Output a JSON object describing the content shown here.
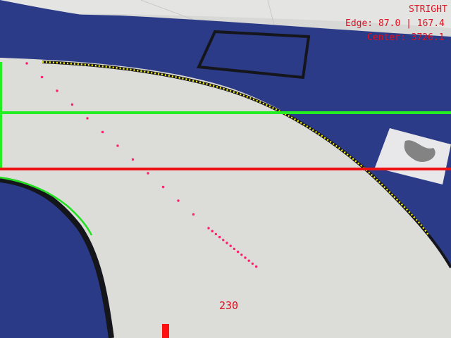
{
  "hud": {
    "state": "STRIGHT",
    "edge": "Edge: 87.0 | 167.4",
    "center": "Center: 3726.1",
    "steering": "230"
  },
  "colors": {
    "track_surface": "#dcdcd9",
    "mat_blue": "#2a3a86",
    "border_black": "#15151c",
    "edge_yellow": "#f4f000",
    "edge_green": "#20e020",
    "scan_green": "#22ee22",
    "scan_red": "#ee1111",
    "center_magenta": "#ff1f6a",
    "marker_red": "#ff1010"
  }
}
